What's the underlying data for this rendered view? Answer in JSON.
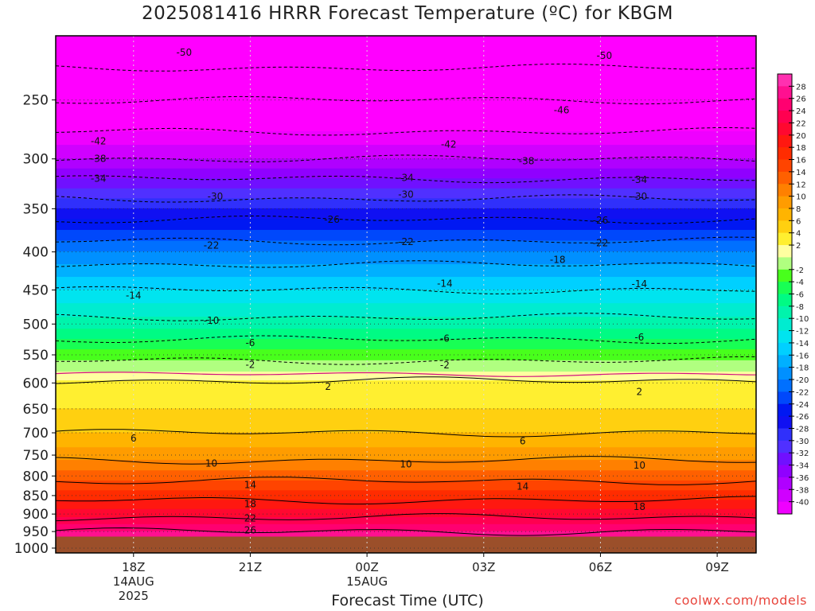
{
  "title": "2025081416 HRRR Forecast Temperature (ºC) for KBGM",
  "credit": "coolwx.com/models",
  "chart_data": {
    "type": "heatmap",
    "title": "2025081416 HRRR Forecast Temperature (ºC) for KBGM",
    "xlabel": "Forecast Time (UTC)",
    "ylabel": "",
    "y_scale": "pressure (hPa), log-like, inverted",
    "ylim": [
      1000,
      250
    ],
    "y_ticks": [
      250,
      300,
      350,
      400,
      450,
      500,
      550,
      600,
      650,
      700,
      750,
      800,
      850,
      900,
      950,
      1000
    ],
    "x_ticks": [
      {
        "hour": 18,
        "label": "18Z",
        "sub": [
          "14AUG",
          "2025"
        ]
      },
      {
        "hour": 21,
        "label": "21Z",
        "sub": []
      },
      {
        "hour": 24,
        "label": "00Z",
        "sub": [
          "15AUG"
        ]
      },
      {
        "hour": 27,
        "label": "03Z",
        "sub": []
      },
      {
        "hour": 30,
        "label": "06Z",
        "sub": []
      },
      {
        "hour": 33,
        "label": "09Z",
        "sub": []
      }
    ],
    "xlim_hours": [
      16,
      34
    ],
    "profile": [
      {
        "p": 1000,
        "t": 30
      },
      {
        "p": 970,
        "t": 28
      },
      {
        "p": 950,
        "t": 26
      },
      {
        "p": 900,
        "t": 21
      },
      {
        "p": 850,
        "t": 17
      },
      {
        "p": 800,
        "t": 13
      },
      {
        "p": 750,
        "t": 9
      },
      {
        "p": 700,
        "t": 6
      },
      {
        "p": 650,
        "t": 4
      },
      {
        "p": 600,
        "t": 2.5
      },
      {
        "p": 580,
        "t": 0
      },
      {
        "p": 560,
        "t": -2
      },
      {
        "p": 550,
        "t": -3
      },
      {
        "p": 500,
        "t": -9
      },
      {
        "p": 450,
        "t": -14
      },
      {
        "p": 400,
        "t": -20
      },
      {
        "p": 350,
        "t": -28
      },
      {
        "p": 300,
        "t": -38
      },
      {
        "p": 270,
        "t": -43
      },
      {
        "p": 250,
        "t": -46
      },
      {
        "p": 200,
        "t": -55
      }
    ],
    "ground_pressure": 965,
    "contour_labels": [
      {
        "value": "-50",
        "hour": 19.3,
        "p": 216
      },
      {
        "value": "-50",
        "hour": 30.1,
        "p": 218
      },
      {
        "value": "-46",
        "hour": 29.0,
        "p": 258
      },
      {
        "value": "-42",
        "hour": 17.1,
        "p": 284
      },
      {
        "value": "-42",
        "hour": 26.1,
        "p": 287
      },
      {
        "value": "-38",
        "hour": 17.1,
        "p": 300
      },
      {
        "value": "-38",
        "hour": 28.1,
        "p": 302
      },
      {
        "value": "-34",
        "hour": 17.1,
        "p": 319
      },
      {
        "value": "-34",
        "hour": 25.0,
        "p": 318
      },
      {
        "value": "-34",
        "hour": 31.0,
        "p": 320
      },
      {
        "value": "-30",
        "hour": 20.1,
        "p": 337
      },
      {
        "value": "-30",
        "hour": 25.0,
        "p": 335
      },
      {
        "value": "-30",
        "hour": 31.0,
        "p": 337
      },
      {
        "value": "-26",
        "hour": 23.1,
        "p": 362
      },
      {
        "value": "-26",
        "hour": 30.0,
        "p": 363
      },
      {
        "value": "-22",
        "hour": 20.0,
        "p": 392
      },
      {
        "value": "-22",
        "hour": 25.0,
        "p": 388
      },
      {
        "value": "-22",
        "hour": 30.0,
        "p": 389
      },
      {
        "value": "-18",
        "hour": 28.9,
        "p": 410
      },
      {
        "value": "-14",
        "hour": 18.0,
        "p": 458
      },
      {
        "value": "-14",
        "hour": 26.0,
        "p": 441
      },
      {
        "value": "-14",
        "hour": 31.0,
        "p": 442
      },
      {
        "value": "-10",
        "hour": 20.0,
        "p": 495
      },
      {
        "value": "-6",
        "hour": 21.0,
        "p": 530
      },
      {
        "value": "-6",
        "hour": 26.0,
        "p": 523
      },
      {
        "value": "-6",
        "hour": 31.0,
        "p": 521
      },
      {
        "value": "-2",
        "hour": 21.0,
        "p": 567
      },
      {
        "value": "-2",
        "hour": 26.0,
        "p": 568
      },
      {
        "value": "2",
        "hour": 23.0,
        "p": 607
      },
      {
        "value": "2",
        "hour": 31.0,
        "p": 617
      },
      {
        "value": "6",
        "hour": 18.0,
        "p": 712
      },
      {
        "value": "6",
        "hour": 28.0,
        "p": 718
      },
      {
        "value": "10",
        "hour": 20.0,
        "p": 770
      },
      {
        "value": "10",
        "hour": 25.0,
        "p": 771
      },
      {
        "value": "10",
        "hour": 31.0,
        "p": 774
      },
      {
        "value": "14",
        "hour": 21.0,
        "p": 822
      },
      {
        "value": "14",
        "hour": 28.0,
        "p": 826
      },
      {
        "value": "18",
        "hour": 21.0,
        "p": 872
      },
      {
        "value": "18",
        "hour": 31.0,
        "p": 880
      },
      {
        "value": "22",
        "hour": 21.0,
        "p": 912
      },
      {
        "value": "26",
        "hour": 21.0,
        "p": 946
      }
    ],
    "colorbar": {
      "range": [
        -42,
        30
      ],
      "step": 2,
      "labels": [
        "28",
        "26",
        "24",
        "22",
        "20",
        "18",
        "16",
        "14",
        "12",
        "10",
        "8",
        "6",
        "4",
        "2",
        "-2",
        "-4",
        "-6",
        "-8",
        "-10",
        "-12",
        "-14",
        "-16",
        "-18",
        "-20",
        "-22",
        "-24",
        "-26",
        "-28",
        "-30",
        "-32",
        "-34",
        "-36",
        "-38",
        "-40"
      ],
      "stops": [
        {
          "t": -42,
          "color": "#ff00ff"
        },
        {
          "t": -38,
          "color": "#c000ff"
        },
        {
          "t": -34,
          "color": "#8000ff"
        },
        {
          "t": -30,
          "color": "#4040ff"
        },
        {
          "t": -26,
          "color": "#0000ee"
        },
        {
          "t": -22,
          "color": "#0060ff"
        },
        {
          "t": -18,
          "color": "#00a0ff"
        },
        {
          "t": -14,
          "color": "#00e0ff"
        },
        {
          "t": -10,
          "color": "#00f0c0"
        },
        {
          "t": -6,
          "color": "#00ff70"
        },
        {
          "t": -2,
          "color": "#60ff00"
        },
        {
          "t": 0,
          "color": "#ffffff"
        },
        {
          "t": 2,
          "color": "#ffff40"
        },
        {
          "t": 6,
          "color": "#ffc000"
        },
        {
          "t": 10,
          "color": "#ff9000"
        },
        {
          "t": 14,
          "color": "#ff5000"
        },
        {
          "t": 18,
          "color": "#ff2000"
        },
        {
          "t": 22,
          "color": "#ff0040"
        },
        {
          "t": 26,
          "color": "#ff0080"
        },
        {
          "t": 30,
          "color": "#ff40c0"
        }
      ]
    },
    "ground_color": "#9b4f2a",
    "grid": true
  }
}
